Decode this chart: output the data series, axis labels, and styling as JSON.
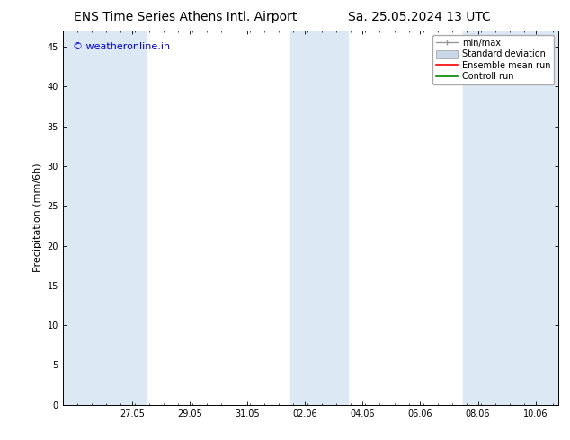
{
  "title_left": "ENS Time Series Athens Intl. Airport",
  "title_right": "Sa. 25.05.2024 13 UTC",
  "ylabel": "Precipitation (mm/6h)",
  "watermark": "© weatheronline.in",
  "watermark_color": "#0000cc",
  "ylim": [
    0,
    47
  ],
  "yticks": [
    0,
    5,
    10,
    15,
    20,
    25,
    30,
    35,
    40,
    45
  ],
  "xtick_labels": [
    "27.05",
    "29.05",
    "31.05",
    "02.06",
    "04.06",
    "06.06",
    "08.06",
    "10.06"
  ],
  "xtick_positions": [
    2,
    4,
    6,
    8,
    10,
    12,
    14,
    16
  ],
  "xlim": [
    -0.4,
    16.8
  ],
  "shaded_band_color": "#dce9f5",
  "shaded_bands": [
    {
      "x_start": -0.4,
      "x_end": 2.5
    },
    {
      "x_start": 7.5,
      "x_end": 9.5
    },
    {
      "x_start": 13.5,
      "x_end": 16.8
    }
  ],
  "legend_entries": [
    {
      "label": "min/max",
      "type": "errorbar",
      "color": "#999999"
    },
    {
      "label": "Standard deviation",
      "type": "box",
      "color": "#c8d8e8"
    },
    {
      "label": "Ensemble mean run",
      "type": "line",
      "color": "#ff0000"
    },
    {
      "label": "Controll run",
      "type": "line",
      "color": "#008800"
    }
  ],
  "bg_color": "#ffffff",
  "title_fontsize": 10,
  "label_fontsize": 8,
  "tick_fontsize": 7,
  "watermark_fontsize": 8,
  "legend_fontsize": 7
}
